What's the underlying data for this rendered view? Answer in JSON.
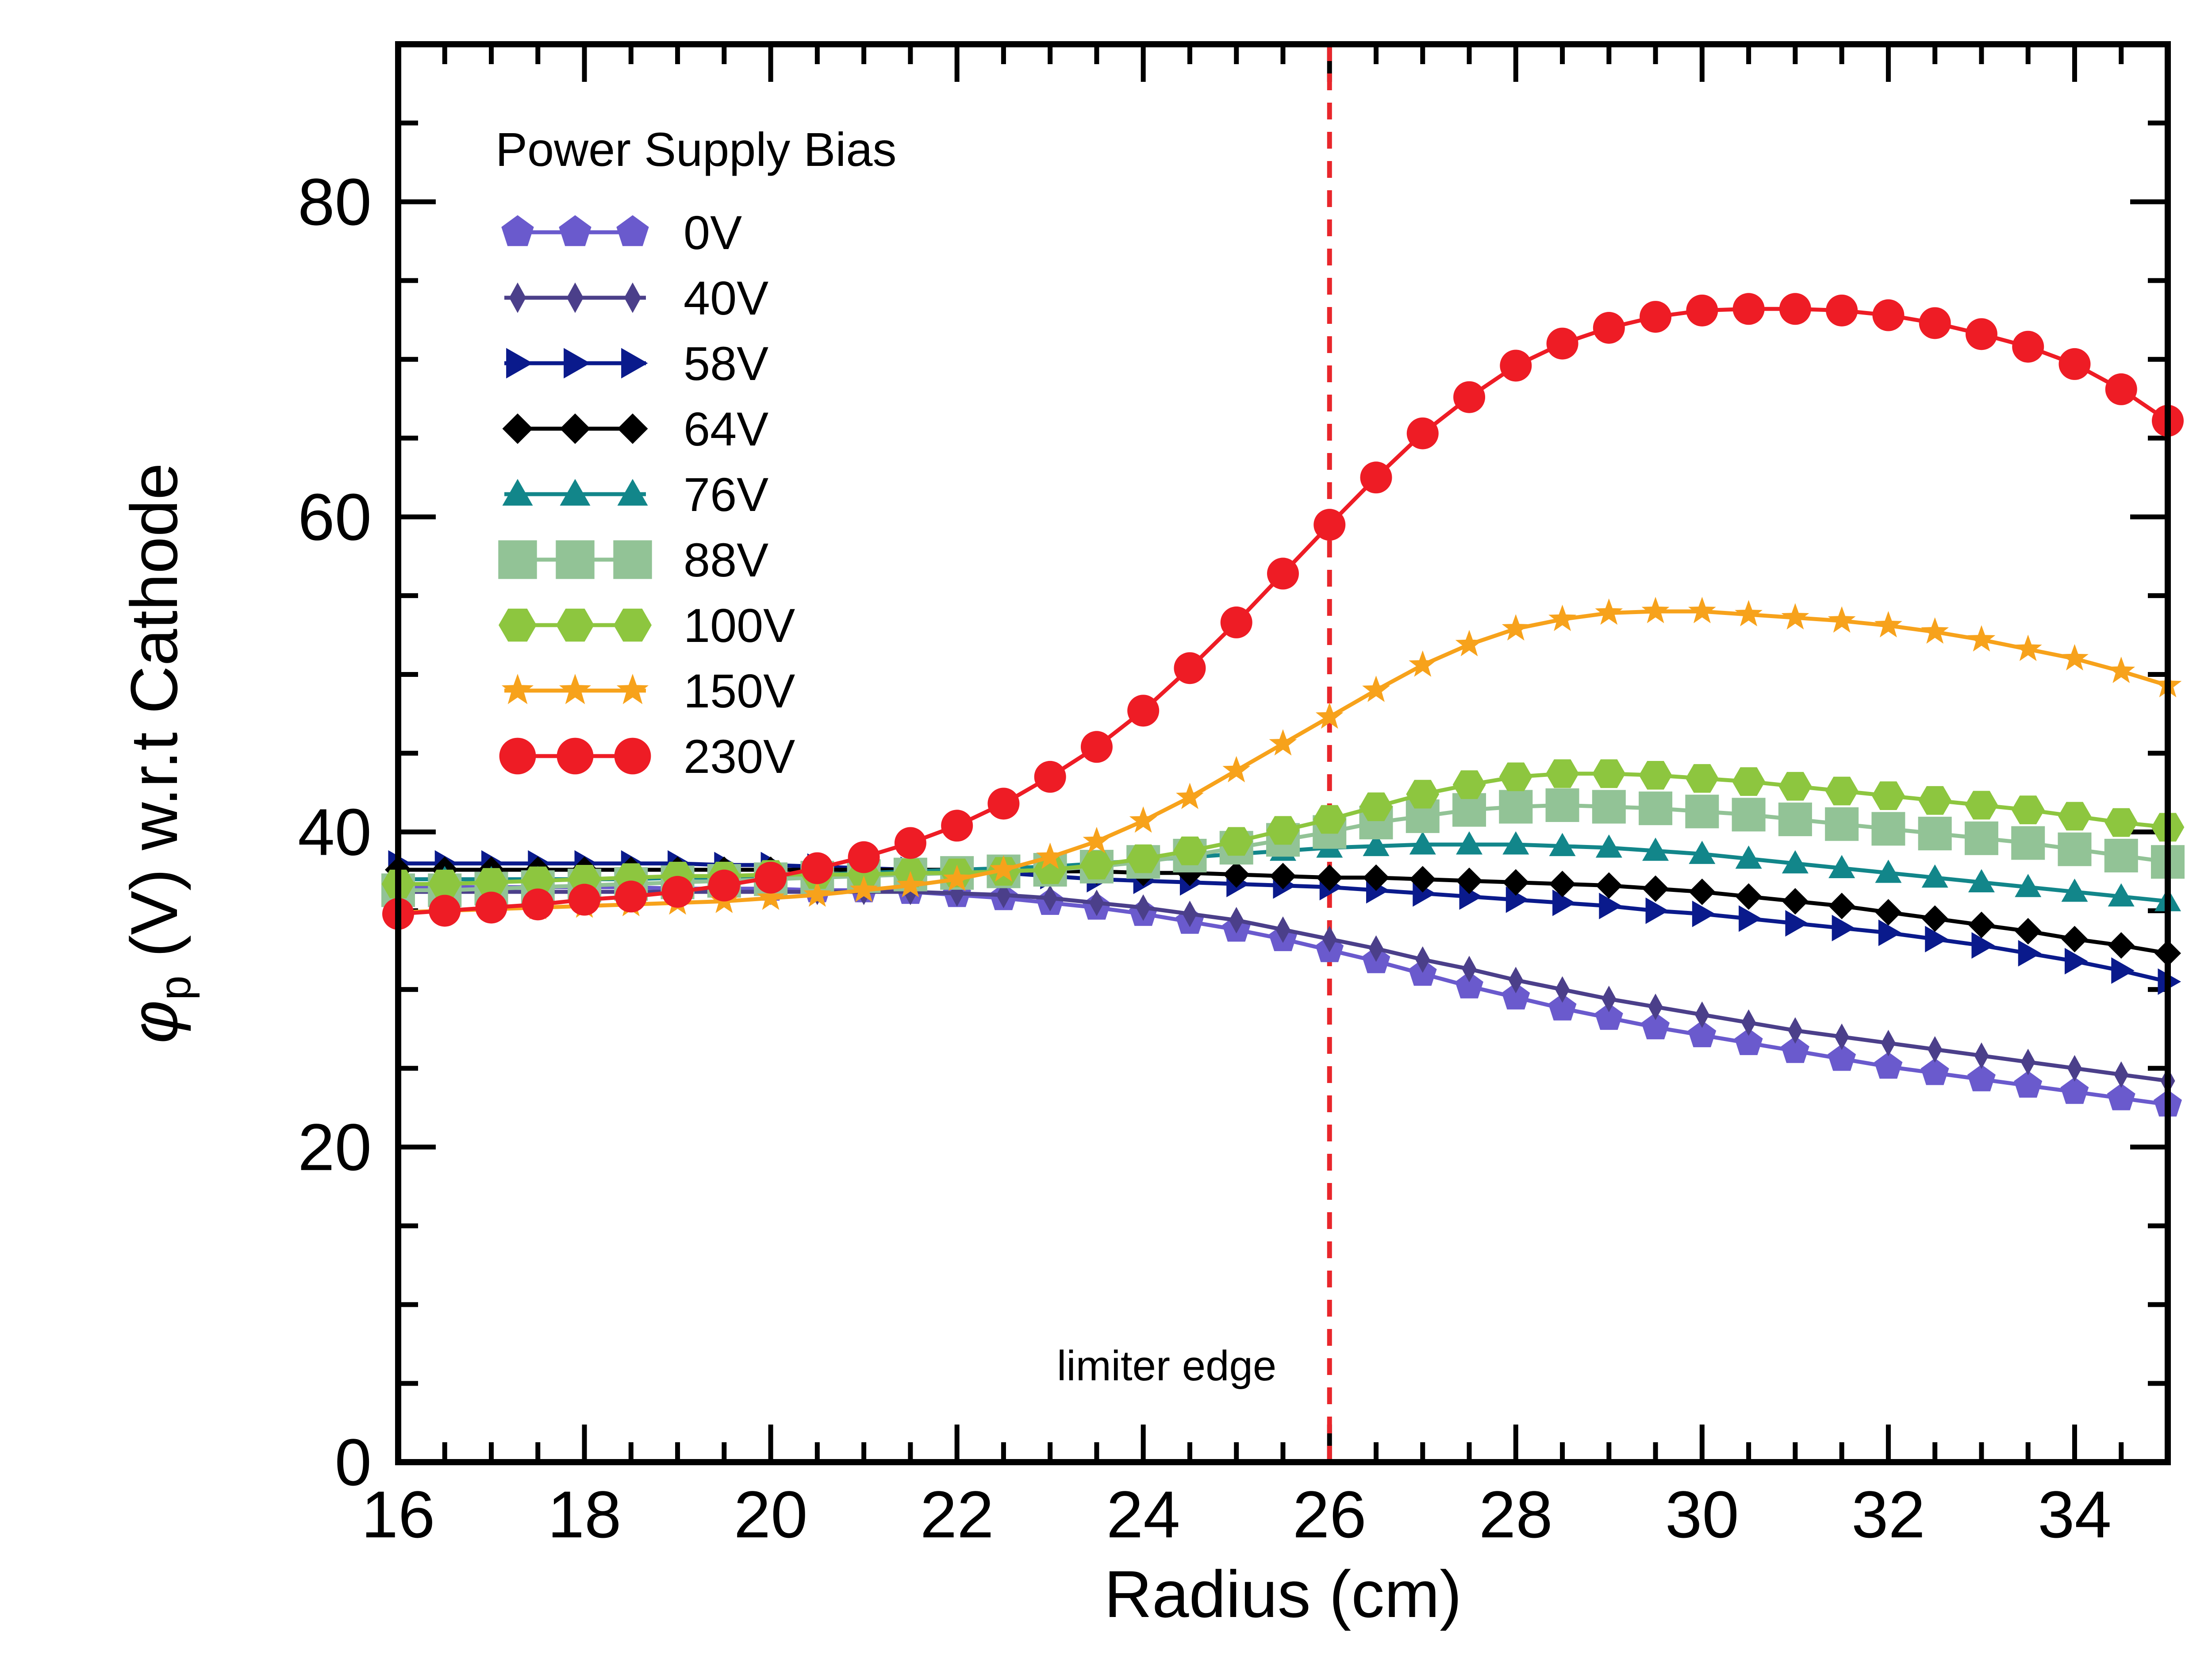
{
  "chart_data": {
    "type": "line",
    "title": "",
    "xlabel": "Radius (cm)",
    "ylabel_symbol": "φ",
    "ylabel_subscript": "p",
    "ylabel_rest": " (V) w.r.t Cathode",
    "xlim": [
      16,
      35
    ],
    "ylim": [
      0,
      90
    ],
    "x_ticks": [
      16,
      18,
      20,
      22,
      24,
      26,
      28,
      30,
      32,
      34
    ],
    "y_ticks": [
      0,
      20,
      40,
      60,
      80
    ],
    "x_tick_labels": [
      "16",
      "18",
      "20",
      "22",
      "24",
      "26",
      "28",
      "30",
      "32",
      "34"
    ],
    "y_tick_labels": [
      "0",
      "20",
      "40",
      "60",
      "80"
    ],
    "legend": {
      "title": "Power Supply Bias",
      "position": "top-left"
    },
    "annotations": [
      {
        "text": "limiter edge",
        "x": 26,
        "style": "dashed vertical line",
        "color": "#e8262b"
      }
    ],
    "x": [
      16,
      16.5,
      17,
      17.5,
      18,
      18.5,
      19,
      19.5,
      20,
      20.5,
      21,
      21.5,
      22,
      22.5,
      23,
      23.5,
      24,
      24.5,
      25,
      25.5,
      26,
      26.5,
      27,
      27.5,
      28,
      28.5,
      29,
      29.5,
      30,
      30.5,
      31,
      31.5,
      32,
      32.5,
      33,
      33.5,
      34,
      34.5,
      35
    ],
    "series": [
      {
        "name": "0V",
        "color": "#6a5acd",
        "marker": "pentagon",
        "values": [
          36.5,
          36.5,
          36.5,
          36.5,
          36.5,
          36.5,
          36.4,
          36.4,
          36.4,
          36.3,
          36.3,
          36.2,
          36.0,
          35.8,
          35.5,
          35.2,
          34.8,
          34.3,
          33.8,
          33.2,
          32.5,
          31.8,
          31.0,
          30.2,
          29.5,
          28.8,
          28.2,
          27.6,
          27.1,
          26.6,
          26.1,
          25.6,
          25.1,
          24.7,
          24.3,
          23.9,
          23.5,
          23.1,
          22.7
        ]
      },
      {
        "name": "40V",
        "color": "#4b3f8a",
        "marker": "thin-diamond",
        "values": [
          36.2,
          36.2,
          36.2,
          36.2,
          36.2,
          36.2,
          36.2,
          36.2,
          36.2,
          36.2,
          36.2,
          36.2,
          36.1,
          36.0,
          35.8,
          35.5,
          35.2,
          34.8,
          34.4,
          33.8,
          33.2,
          32.6,
          31.9,
          31.3,
          30.6,
          30.0,
          29.4,
          28.9,
          28.4,
          27.9,
          27.4,
          27.0,
          26.6,
          26.2,
          25.8,
          25.4,
          25.0,
          24.6,
          24.2
        ]
      },
      {
        "name": "58V",
        "color": "#0a1a8c",
        "marker": "triangle-right",
        "values": [
          38.0,
          38.0,
          38.0,
          38.0,
          38.0,
          38.0,
          38.0,
          37.9,
          37.9,
          37.8,
          37.7,
          37.6,
          37.5,
          37.4,
          37.2,
          37.0,
          36.9,
          36.8,
          36.7,
          36.6,
          36.5,
          36.3,
          36.1,
          35.9,
          35.7,
          35.5,
          35.3,
          35.0,
          34.8,
          34.5,
          34.2,
          33.9,
          33.6,
          33.2,
          32.8,
          32.3,
          31.8,
          31.2,
          30.5
        ]
      },
      {
        "name": "64V",
        "color": "#000000",
        "marker": "diamond",
        "values": [
          37.6,
          37.6,
          37.6,
          37.6,
          37.6,
          37.6,
          37.6,
          37.6,
          37.6,
          37.6,
          37.6,
          37.6,
          37.6,
          37.6,
          37.5,
          37.5,
          37.4,
          37.4,
          37.3,
          37.2,
          37.1,
          37.1,
          37.0,
          36.9,
          36.8,
          36.7,
          36.6,
          36.4,
          36.2,
          35.9,
          35.6,
          35.3,
          34.9,
          34.5,
          34.1,
          33.7,
          33.2,
          32.8,
          32.3
        ]
      },
      {
        "name": "76V",
        "color": "#12868a",
        "marker": "triangle-up",
        "values": [
          37.0,
          37.0,
          37.0,
          37.0,
          37.0,
          37.0,
          37.1,
          37.1,
          37.2,
          37.3,
          37.4,
          37.5,
          37.6,
          37.7,
          37.8,
          38.0,
          38.2,
          38.4,
          38.6,
          38.8,
          39.0,
          39.1,
          39.2,
          39.2,
          39.2,
          39.1,
          39.0,
          38.8,
          38.6,
          38.3,
          38.0,
          37.7,
          37.4,
          37.1,
          36.8,
          36.5,
          36.2,
          35.9,
          35.6
        ]
      },
      {
        "name": "88V",
        "color": "#92c396",
        "marker": "square",
        "values": [
          36.3,
          36.3,
          36.4,
          36.5,
          36.6,
          36.7,
          36.8,
          36.9,
          37.0,
          37.1,
          37.2,
          37.3,
          37.4,
          37.5,
          37.6,
          37.8,
          38.1,
          38.5,
          39.0,
          39.5,
          40.0,
          40.6,
          41.0,
          41.4,
          41.6,
          41.7,
          41.6,
          41.5,
          41.3,
          41.1,
          40.8,
          40.5,
          40.2,
          39.9,
          39.6,
          39.3,
          38.9,
          38.5,
          38.1
        ]
      },
      {
        "name": "100V",
        "color": "#8dc63f",
        "marker": "hexagon",
        "values": [
          36.7,
          36.7,
          36.8,
          36.9,
          37.0,
          37.1,
          37.2,
          37.2,
          37.3,
          37.3,
          37.3,
          37.4,
          37.4,
          37.5,
          37.6,
          37.9,
          38.3,
          38.8,
          39.4,
          40.1,
          40.8,
          41.6,
          42.4,
          43.0,
          43.5,
          43.7,
          43.7,
          43.6,
          43.4,
          43.2,
          42.9,
          42.6,
          42.3,
          42.0,
          41.7,
          41.4,
          41.0,
          40.6,
          40.3
        ]
      },
      {
        "name": "150V",
        "color": "#f7a21b",
        "marker": "star",
        "values": [
          34.9,
          35.0,
          35.1,
          35.2,
          35.3,
          35.4,
          35.5,
          35.6,
          35.8,
          36.0,
          36.3,
          36.6,
          37.0,
          37.6,
          38.4,
          39.4,
          40.7,
          42.2,
          43.9,
          45.6,
          47.3,
          49.0,
          50.6,
          51.9,
          52.9,
          53.5,
          53.9,
          54.0,
          54.0,
          53.8,
          53.6,
          53.4,
          53.1,
          52.7,
          52.2,
          51.6,
          51.0,
          50.2,
          49.3
        ]
      },
      {
        "name": "230V",
        "color": "#ee1c25",
        "marker": "circle",
        "values": [
          34.8,
          35.0,
          35.2,
          35.4,
          35.7,
          35.9,
          36.2,
          36.6,
          37.1,
          37.7,
          38.4,
          39.3,
          40.4,
          41.8,
          43.5,
          45.4,
          47.7,
          50.4,
          53.3,
          56.4,
          59.5,
          62.5,
          65.3,
          67.6,
          69.6,
          71.0,
          72.0,
          72.7,
          73.1,
          73.2,
          73.2,
          73.1,
          72.8,
          72.3,
          71.6,
          70.8,
          69.7,
          68.1,
          66.1
        ]
      }
    ]
  }
}
